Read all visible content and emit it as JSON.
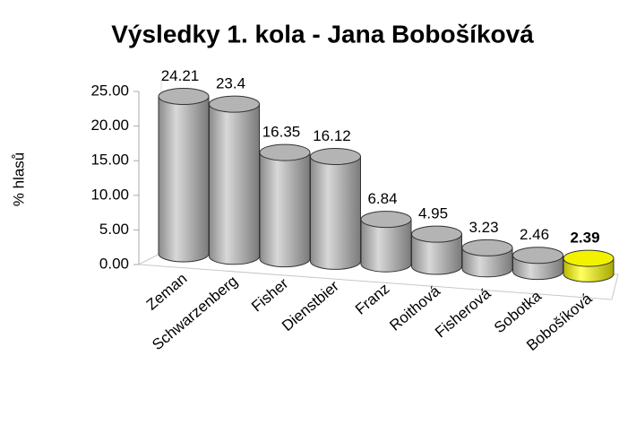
{
  "chart_data": {
    "type": "bar3d",
    "title": "Výsledky 1. kola - Jana Bobošíková",
    "ylabel": "% hlasů",
    "categories": [
      "Zeman",
      "Schwarzenberg",
      "Fisher",
      "Dienstbier",
      "Franz",
      "Roithová",
      "Fisherová",
      "Sobotka",
      "Bobošíková"
    ],
    "values": [
      24.21,
      23.4,
      16.35,
      16.12,
      6.84,
      4.95,
      3.23,
      2.46,
      2.39
    ],
    "colors": [
      "#b4b4b4",
      "#b4b4b4",
      "#b4b4b4",
      "#b4b4b4",
      "#b4b4b4",
      "#b4b4b4",
      "#b4b4b4",
      "#b4b4b4",
      "#f2f200"
    ],
    "ylim": [
      0,
      25
    ],
    "yticks": [
      {
        "value": 0,
        "label": "0.00"
      },
      {
        "value": 5,
        "label": "5.00"
      },
      {
        "value": 10,
        "label": "10.00"
      },
      {
        "value": 15,
        "label": "15.00"
      },
      {
        "value": 20,
        "label": "20.00"
      },
      {
        "value": 25,
        "label": "25.00"
      }
    ]
  }
}
